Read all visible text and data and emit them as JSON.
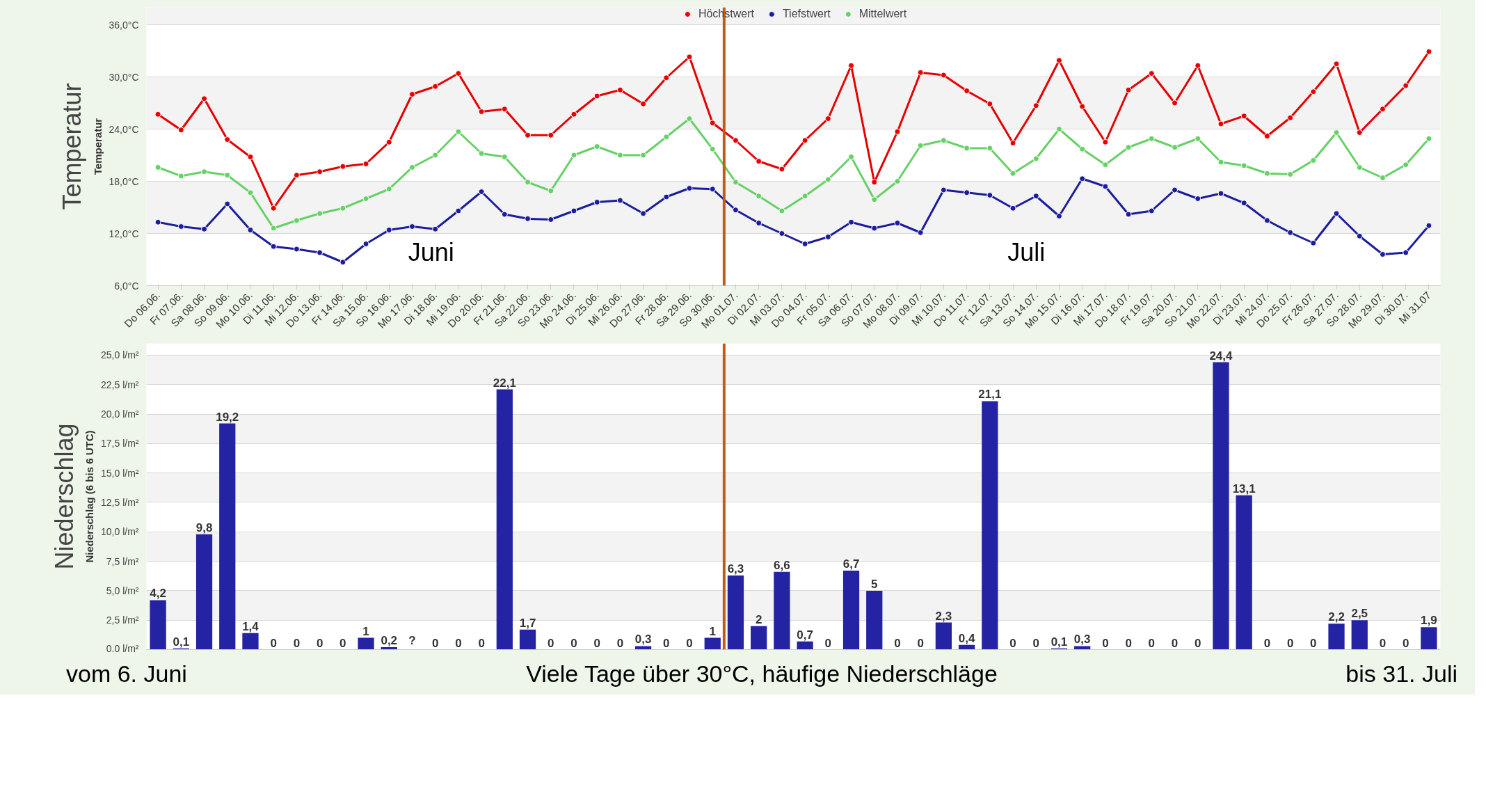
{
  "chart_data": [
    {
      "type": "line",
      "ylabel": "Temperatur",
      "legend": "top",
      "marker": "circle",
      "grid": "y",
      "line_style": "solid",
      "categories": [
        "Do 06.06.",
        "Fr 07.06.",
        "Sa 08.06.",
        "So 09.06.",
        "Mo 10.06.",
        "Di 11.06.",
        "Mi 12.06.",
        "Do 13.06.",
        "Fr 14.06.",
        "Sa 15.06.",
        "So 16.06.",
        "Mo 17.06.",
        "Di 18.06.",
        "Mi 19.06.",
        "Do 20.06.",
        "Fr 21.06.",
        "Sa 22.06.",
        "So 23.06.",
        "Mo 24.06.",
        "Di 25.06.",
        "Mi 26.06.",
        "Do 27.06.",
        "Fr 28.06.",
        "Sa 29.06.",
        "So 30.06.",
        "Mo 01.07.",
        "Di 02.07.",
        "Mi 03.07.",
        "Do 04.07.",
        "Fr 05.07.",
        "Sa 06.07.",
        "So 07.07.",
        "Mo 08.07.",
        "Di 09.07.",
        "Mi 10.07.",
        "Do 11.07.",
        "Fr 12.07.",
        "Sa 13.07.",
        "So 14.07.",
        "Mo 15.07.",
        "Di 16.07.",
        "Mi 17.07.",
        "Do 18.07.",
        "Fr 19.07.",
        "Sa 20.07.",
        "So 21.07.",
        "Mo 22.07.",
        "Di 23.07.",
        "Mi 24.07.",
        "Do 25.07.",
        "Fr 26.07.",
        "Sa 27.07.",
        "So 28.07.",
        "Mo 29.07.",
        "Di 30.07.",
        "Mi 31.07"
      ],
      "ylim": [
        6,
        38
      ],
      "yticks": [
        {
          "value": 6,
          "label": "6,0°C"
        },
        {
          "value": 12,
          "label": "12,0°C"
        },
        {
          "value": 18,
          "label": "18,0°C"
        },
        {
          "value": 24,
          "label": "24,0°C"
        },
        {
          "value": 30,
          "label": "30,0°C"
        },
        {
          "value": 36,
          "label": "36,0°C"
        }
      ],
      "series": [
        {
          "name": "Höchstwert",
          "color": "#e60000",
          "values": [
            25.7,
            23.9,
            27.5,
            22.8,
            20.8,
            14.9,
            18.7,
            19.1,
            19.7,
            20.0,
            22.5,
            28.0,
            28.9,
            30.4,
            26.0,
            26.3,
            23.3,
            23.3,
            25.7,
            27.8,
            28.5,
            26.9,
            29.9,
            32.3,
            24.7,
            22.7,
            20.3,
            19.4,
            22.7,
            25.2,
            31.3,
            17.9,
            23.7,
            30.5,
            30.2,
            28.4,
            26.9,
            22.4,
            26.7,
            31.9,
            26.6,
            22.5,
            28.5,
            30.4,
            27.0,
            31.3,
            24.6,
            25.5,
            23.2,
            25.3,
            28.3,
            31.5,
            23.6,
            26.3,
            29.0,
            32.9
          ]
        },
        {
          "name": "Tiefstwert",
          "color": "#1c1c9e",
          "values": [
            13.3,
            12.8,
            12.5,
            15.4,
            12.4,
            10.5,
            10.2,
            9.8,
            8.7,
            10.8,
            12.4,
            12.8,
            12.5,
            14.6,
            16.8,
            14.2,
            13.7,
            13.6,
            14.6,
            15.6,
            15.8,
            14.3,
            16.2,
            17.2,
            17.1,
            14.7,
            13.2,
            12.0,
            10.8,
            11.6,
            13.3,
            12.6,
            13.2,
            12.1,
            17.0,
            16.7,
            16.4,
            14.9,
            16.3,
            14.0,
            18.3,
            17.4,
            14.2,
            14.6,
            17.0,
            16.0,
            16.6,
            15.5,
            13.5,
            12.1,
            10.9,
            14.3,
            11.7,
            9.6,
            9.8,
            12.9
          ]
        },
        {
          "name": "Mittelwert",
          "color": "#66d166",
          "values": [
            19.6,
            18.6,
            19.1,
            18.7,
            16.7,
            12.6,
            13.5,
            14.3,
            14.9,
            16.0,
            17.1,
            19.6,
            21.0,
            23.7,
            21.2,
            20.8,
            17.9,
            16.9,
            21.0,
            22.0,
            21.0,
            21.0,
            23.1,
            25.2,
            21.7,
            17.9,
            16.3,
            14.6,
            16.3,
            18.2,
            20.8,
            15.9,
            18.0,
            22.1,
            22.7,
            21.8,
            21.8,
            18.9,
            20.6,
            24.0,
            21.7,
            19.9,
            21.9,
            22.9,
            21.9,
            22.9,
            20.2,
            19.8,
            18.9,
            18.8,
            20.4,
            23.6,
            19.6,
            18.4,
            19.9,
            22.9
          ]
        }
      ],
      "ref_lines": [
        {
          "axis": "x",
          "value": "Mo 01.07.",
          "color": "#c55a11"
        }
      ],
      "annotations": [
        "Temperatur",
        "Juni",
        "Juli"
      ]
    },
    {
      "type": "bar",
      "ylabel": "Niederschlag (6 bis 6 UTC)",
      "grid": "y",
      "tick_labels": "y",
      "categories": [
        "Do 06.06.",
        "Fr 07.06.",
        "Sa 08.06.",
        "So 09.06.",
        "Mo 10.06.",
        "Di 11.06.",
        "Mi 12.06.",
        "Do 13.06.",
        "Fr 14.06.",
        "Sa 15.06.",
        "So 16.06.",
        "Mo 17.06.",
        "Di 18.06.",
        "Mi 19.06.",
        "Do 20.06.",
        "Fr 21.06.",
        "Sa 22.06.",
        "So 23.06.",
        "Mo 24.06.",
        "Di 25.06.",
        "Mi 26.06.",
        "Do 27.06.",
        "Fr 28.06.",
        "Sa 29.06.",
        "So 30.06.",
        "Mo 01.07.",
        "Di 02.07.",
        "Mi 03.07.",
        "Do 04.07.",
        "Fr 05.07.",
        "Sa 06.07.",
        "So 07.07.",
        "Mo 08.07.",
        "Di 09.07.",
        "Mi 10.07.",
        "Do 11.07.",
        "Fr 12.07.",
        "Sa 13.07.",
        "So 14.07.",
        "Mo 15.07.",
        "Di 16.07.",
        "Mi 17.07.",
        "Do 18.07.",
        "Fr 19.07.",
        "Sa 20.07.",
        "So 21.07.",
        "Mo 22.07.",
        "Di 23.07.",
        "Mi 24.07.",
        "Do 25.07.",
        "Fr 26.07.",
        "Sa 27.07.",
        "So 28.07.",
        "Mo 29.07.",
        "Di 30.07.",
        "Mi 31.07"
      ],
      "ylim": [
        0,
        26
      ],
      "yticks": [
        {
          "value": 0,
          "label": "0.0 l/m²"
        },
        {
          "value": 2.5,
          "label": "2,5 l/m²"
        },
        {
          "value": 5,
          "label": "5,0 l/m²"
        },
        {
          "value": 7.5,
          "label": "7,5 l/m²"
        },
        {
          "value": 10,
          "label": "10,0 l/m²"
        },
        {
          "value": 12.5,
          "label": "12,5 l/m²"
        },
        {
          "value": 15,
          "label": "15,0 l/m²"
        },
        {
          "value": 17.5,
          "label": "17,5 l/m²"
        },
        {
          "value": 20,
          "label": "20,0 l/m²"
        },
        {
          "value": 22.5,
          "label": "22,5 l/m²"
        },
        {
          "value": 25,
          "label": "25,0 l/m²"
        }
      ],
      "series": [
        {
          "color": "#2323a3",
          "values": [
            4.2,
            0.1,
            9.8,
            19.2,
            1.4,
            0,
            0,
            0,
            0,
            1,
            0.2,
            null,
            0,
            0,
            0,
            22.1,
            1.7,
            0,
            0,
            0,
            0,
            0.3,
            0,
            0,
            1,
            6.3,
            2,
            6.6,
            0.7,
            0,
            6.7,
            5,
            0,
            0,
            2.3,
            0.4,
            21.1,
            0,
            0,
            0.1,
            0.3,
            0,
            0,
            0,
            0,
            0,
            24.4,
            13.1,
            0,
            0,
            0,
            2.2,
            2.5,
            0,
            0,
            1.9
          ],
          "value_labels": [
            "4,2",
            "0,1",
            "9,8",
            "19,2",
            "1,4",
            "0",
            "0",
            "0",
            "0",
            "1",
            "0,2",
            "?",
            "0",
            "0",
            "0",
            "22,1",
            "1,7",
            "0",
            "0",
            "0",
            "0",
            "0,3",
            "0",
            "0",
            "1",
            "6,3",
            "2",
            "6,6",
            "0,7",
            "0",
            "6,7",
            "5",
            "0",
            "0",
            "2,3",
            "0,4",
            "21,1",
            "0",
            "0",
            "0,1",
            "0,3",
            "0",
            "0",
            "0",
            "0",
            "0",
            "24,4",
            "13,1",
            "0",
            "0",
            "0",
            "2,2",
            "2,5",
            "0",
            "0",
            "1,9"
          ]
        }
      ],
      "ref_lines": [
        {
          "axis": "x",
          "value": "Mo 01.07.",
          "color": "#c55a11"
        }
      ],
      "annotations": [
        "Niederschlag",
        "vom 6. Juni",
        "Viele Tage über 30°C, häufige Niederschläge",
        "bis 31. Juli"
      ]
    }
  ]
}
